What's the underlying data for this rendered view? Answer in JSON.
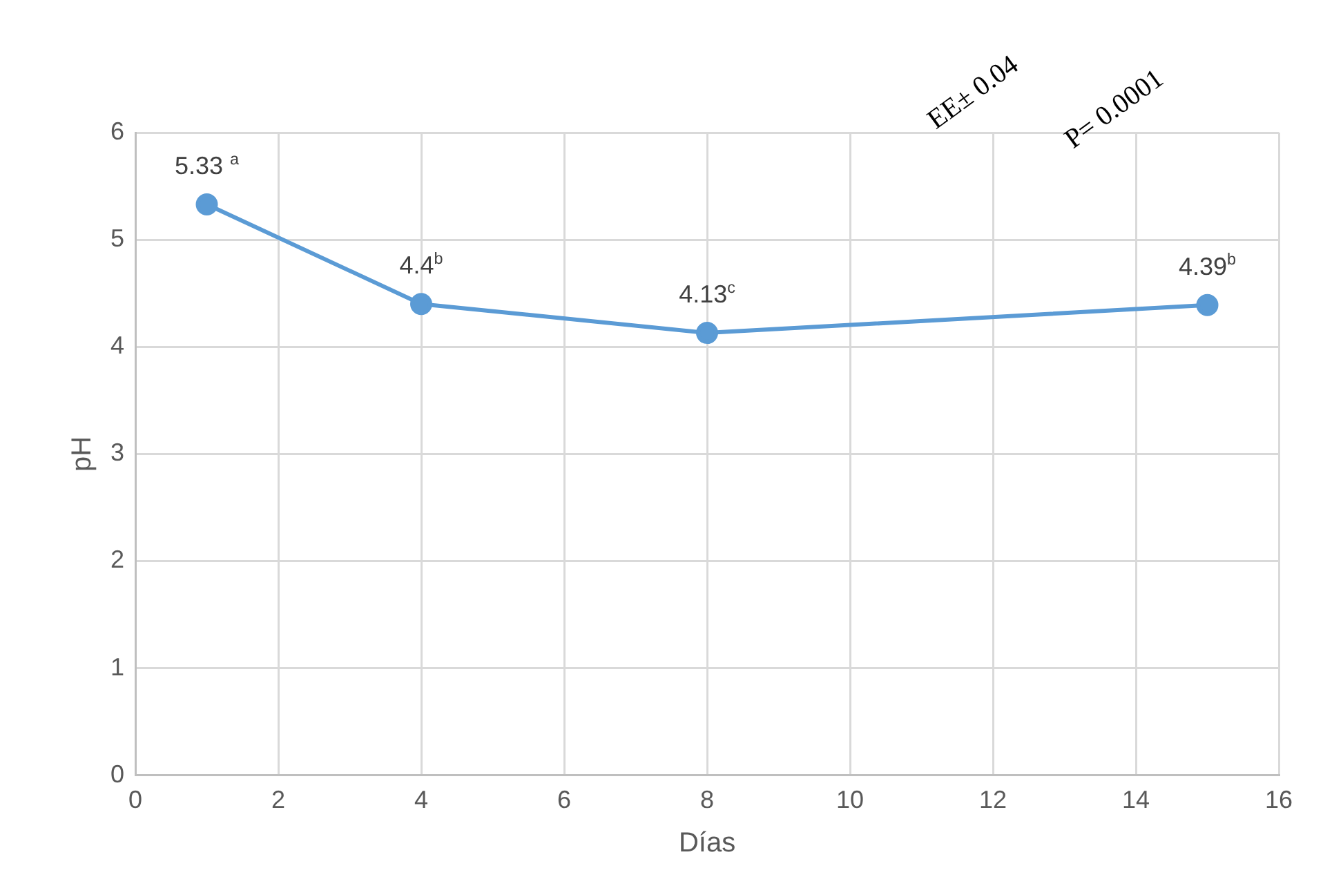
{
  "chart_data": {
    "type": "line",
    "xlabel": "Días",
    "ylabel": "pH",
    "x": [
      1,
      4,
      8,
      15
    ],
    "series": [
      {
        "color": "#5b9bd5",
        "values": [
          5.33,
          4.4,
          4.13,
          4.39
        ],
        "value_labels": [
          "5.33 $^{a}$",
          "4.4$^{b}$",
          "4.13$^{c}$",
          "4.39$^{b}$"
        ]
      }
    ],
    "xlim": [
      0,
      16
    ],
    "xticks": [
      0,
      2,
      4,
      6,
      8,
      10,
      12,
      14,
      16
    ],
    "ylim": [
      0,
      6
    ],
    "yticks": [
      0,
      1,
      2,
      3,
      4,
      5,
      6
    ],
    "grid": true,
    "legend": false,
    "marker": "circle",
    "line_style": "solid",
    "annotations": [
      "EE± 0.04",
      "P= 0.0001"
    ]
  }
}
